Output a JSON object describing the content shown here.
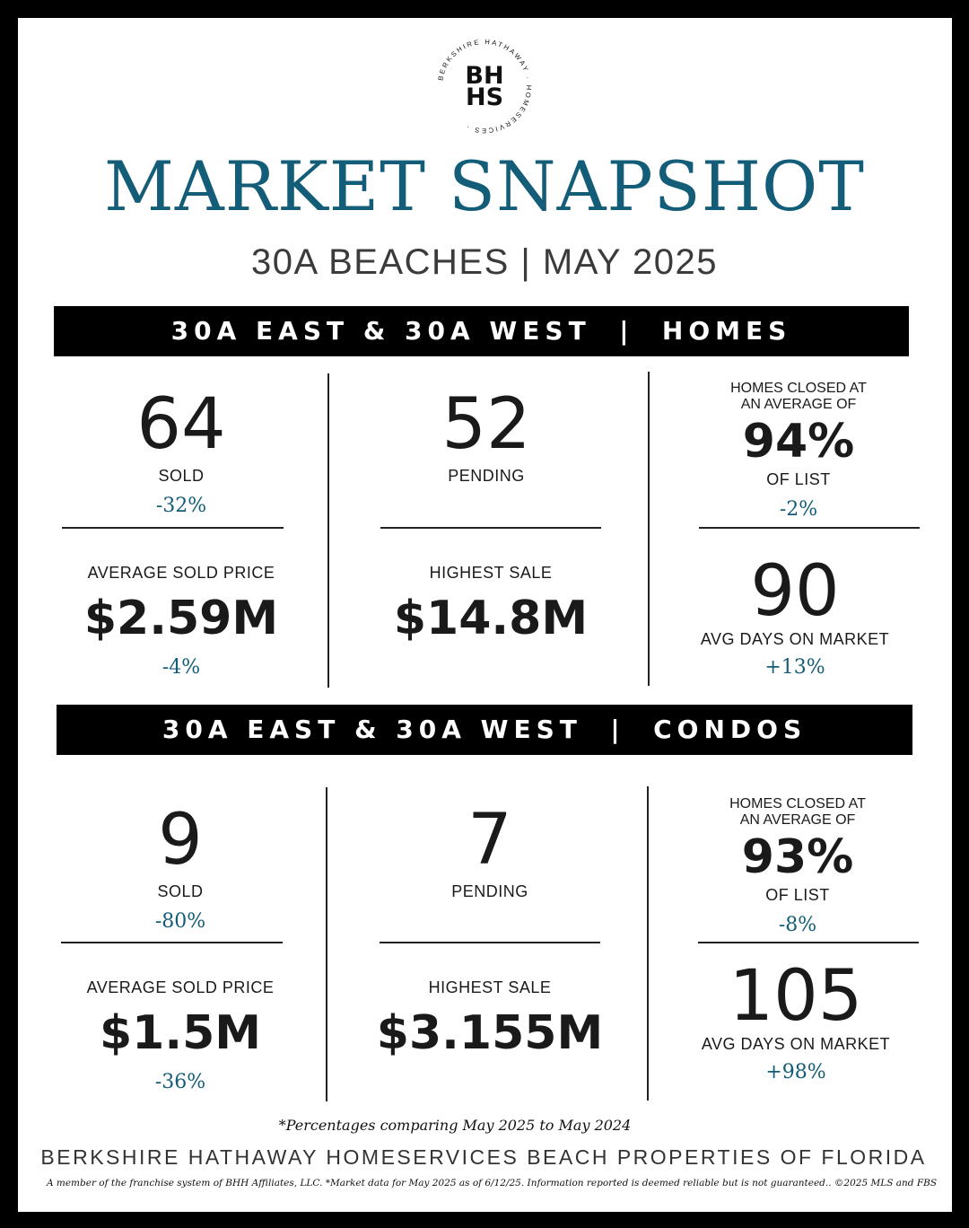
{
  "logo": {
    "ring_text": "BERKSHIRE HATHAWAY · HOMESERVICES ·",
    "line1": "BH",
    "line2": "HS"
  },
  "title": "MARKET SNAPSHOT",
  "subtitle": "30A BEACHES | MAY 2025",
  "sections": [
    {
      "header": "30A EAST & 30A WEST  |  HOMES",
      "sold": {
        "value": "64",
        "label": "SOLD",
        "change": "-32%"
      },
      "pending": {
        "value": "52",
        "label": "PENDING"
      },
      "list_ratio": {
        "pre_label_1": "HOMES CLOSED AT",
        "pre_label_2": "AN AVERAGE OF",
        "value": "94%",
        "label": "OF LIST",
        "change": "-2%"
      },
      "avg_price": {
        "label": "AVERAGE SOLD PRICE",
        "value": "$2.59M",
        "change": "-4%"
      },
      "highest": {
        "label": "HIGHEST SALE",
        "value": "$14.8M"
      },
      "days": {
        "value": "90",
        "label": "AVG DAYS ON MARKET",
        "change": "+13%"
      }
    },
    {
      "header": "30A EAST & 30A WEST  |  CONDOS",
      "sold": {
        "value": "9",
        "label": "SOLD",
        "change": "-80%"
      },
      "pending": {
        "value": "7",
        "label": "PENDING"
      },
      "list_ratio": {
        "pre_label_1": "HOMES CLOSED AT",
        "pre_label_2": "AN AVERAGE OF",
        "value": "93%",
        "label": "OF LIST",
        "change": "-8%"
      },
      "avg_price": {
        "label": "AVERAGE SOLD PRICE",
        "value": "$1.5M",
        "change": "-36%"
      },
      "highest": {
        "label": "HIGHEST SALE",
        "value": "$3.155M"
      },
      "days": {
        "value": "105",
        "label": "AVG DAYS ON MARKET",
        "change": "+98%"
      }
    }
  ],
  "note": "*Percentages comparing May 2025 to May 2024",
  "footer_name": "BERKSHIRE HATHAWAY HOMESERVICES BEACH PROPERTIES OF FLORIDA",
  "disclaimer": "A member of the franchise system of BHH Affiliates, LLC. *Market data for May 2025 as of 6/12/25. Information reported is deemed reliable but is not guaranteed.. ©2025 MLS and FBS",
  "colors": {
    "accent": "#135d78",
    "band": "#000000",
    "text": "#1a1a1a"
  }
}
